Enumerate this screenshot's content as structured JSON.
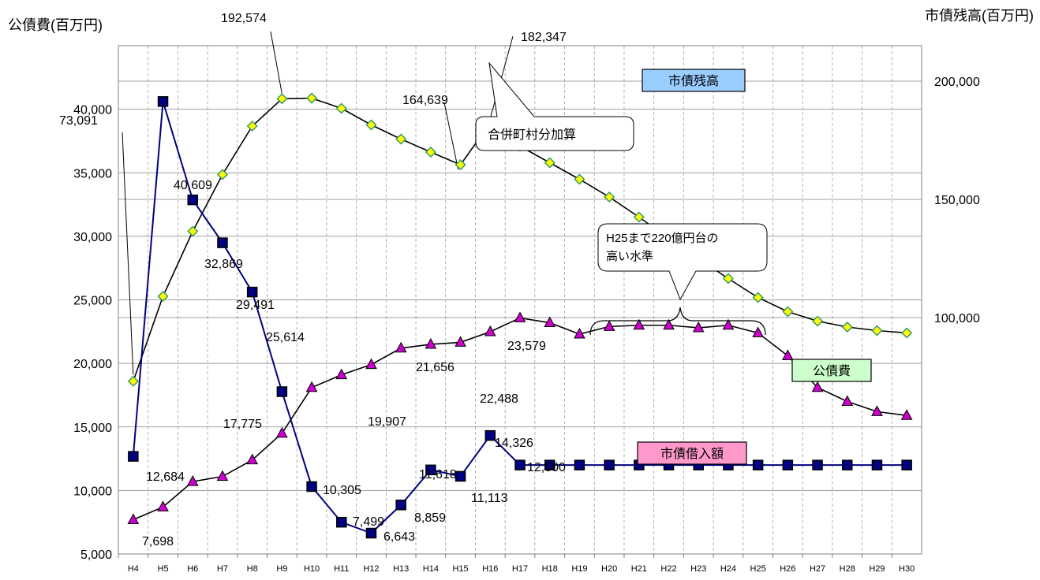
{
  "chart_data": {
    "type": "line",
    "left_axis_title": "公債費(百万円)",
    "right_axis_title": "市債残高(百万円)",
    "categories": [
      "H4",
      "H5",
      "H6",
      "H7",
      "H8",
      "H9",
      "H10",
      "H11",
      "H12",
      "H13",
      "H14",
      "H15",
      "H16",
      "H17",
      "H18",
      "H19",
      "H20",
      "H21",
      "H22",
      "H23",
      "H24",
      "H25",
      "H26",
      "H27",
      "H28",
      "H29",
      "H30"
    ],
    "left_ylim": [
      5000,
      45000
    ],
    "left_ticks": [
      "5,000",
      "10,000",
      "15,000",
      "20,000",
      "25,000",
      "30,000",
      "35,000",
      "40,000"
    ],
    "left_tick_values": [
      5000,
      10000,
      15000,
      20000,
      25000,
      30000,
      35000,
      40000
    ],
    "right_ylim": [
      0,
      215000
    ],
    "right_ticks": [
      "100,000",
      "150,000",
      "200,000"
    ],
    "right_tick_values": [
      100000,
      150000,
      200000
    ],
    "grid": true,
    "series": [
      {
        "name": "市債残高",
        "axis": "right",
        "line_color": "#000000",
        "marker": "diamond",
        "marker_color": "#ffff00",
        "marker_stroke": "#339966",
        "values": [
          73091,
          109000,
          136500,
          160500,
          181000,
          192574,
          192800,
          188500,
          181500,
          175500,
          170000,
          164639,
          182347,
          172500,
          165500,
          158500,
          151000,
          142500,
          133500,
          125000,
          116500,
          108500,
          102500,
          98500,
          96000,
          94500,
          93500
        ]
      },
      {
        "name": "公債費",
        "axis": "left",
        "line_color": "#000000",
        "marker": "triangle",
        "marker_color": "#cc00cc",
        "marker_stroke": "#000000",
        "values": [
          7698,
          8700,
          10700,
          11100,
          12400,
          14500,
          18100,
          19100,
          19907,
          21200,
          21500,
          21656,
          22488,
          23579,
          23200,
          22300,
          22900,
          23000,
          23000,
          22800,
          23000,
          22400,
          20600,
          18100,
          17000,
          16200,
          15900
        ]
      },
      {
        "name": "市債借入額",
        "axis": "left",
        "line_color": "#000080",
        "marker": "square",
        "marker_color": "#000080",
        "marker_stroke": "#000000",
        "values": [
          12684,
          40609,
          32869,
          29491,
          25614,
          17775,
          10305,
          7499,
          6643,
          8859,
          11618,
          11113,
          14326,
          12000,
          12000,
          12000,
          12000,
          12000,
          12000,
          12000,
          12000,
          12000,
          12000,
          12000,
          12000,
          12000,
          12000
        ]
      }
    ],
    "data_labels": [
      {
        "text": "73,091",
        "series": 0,
        "index": 0
      },
      {
        "text": "192,574",
        "series": 0,
        "index": 5
      },
      {
        "text": "182,347",
        "series": 0,
        "index": 12
      },
      {
        "text": "164,639",
        "series": 0,
        "index": 11
      },
      {
        "text": "7,698",
        "series": 1,
        "index": 0
      },
      {
        "text": "19,907",
        "series": 1,
        "index": 8
      },
      {
        "text": "21,656",
        "series": 1,
        "index": 11
      },
      {
        "text": "22,488",
        "series": 1,
        "index": 12
      },
      {
        "text": "23,579",
        "series": 1,
        "index": 13
      },
      {
        "text": "12,684",
        "series": 2,
        "index": 0
      },
      {
        "text": "40,609",
        "series": 2,
        "index": 1
      },
      {
        "text": "32,869",
        "series": 2,
        "index": 2
      },
      {
        "text": "29,491",
        "series": 2,
        "index": 3
      },
      {
        "text": "25,614",
        "series": 2,
        "index": 4
      },
      {
        "text": "17,775",
        "series": 2,
        "index": 5
      },
      {
        "text": "10,305",
        "series": 2,
        "index": 6
      },
      {
        "text": "7,499",
        "series": 2,
        "index": 7
      },
      {
        "text": "6,643",
        "series": 2,
        "index": 8
      },
      {
        "text": "8,859",
        "series": 2,
        "index": 9
      },
      {
        "text": "11,618",
        "series": 2,
        "index": 10
      },
      {
        "text": "11,113",
        "series": 2,
        "index": 11
      },
      {
        "text": "14,326",
        "series": 2,
        "index": 12
      },
      {
        "text": "12,000",
        "series": 2,
        "index": 13
      }
    ],
    "series_label_boxes": [
      {
        "text": "市債残高",
        "fill": "#99ccff"
      },
      {
        "text": "公債費",
        "fill": "#ccffcc"
      },
      {
        "text": "市債借入額",
        "fill": "#ff99cc"
      }
    ],
    "annotations": [
      {
        "text": "合併町村分加算"
      },
      {
        "lines": [
          "H25まで220億円台の",
          "高い水準"
        ]
      }
    ]
  }
}
